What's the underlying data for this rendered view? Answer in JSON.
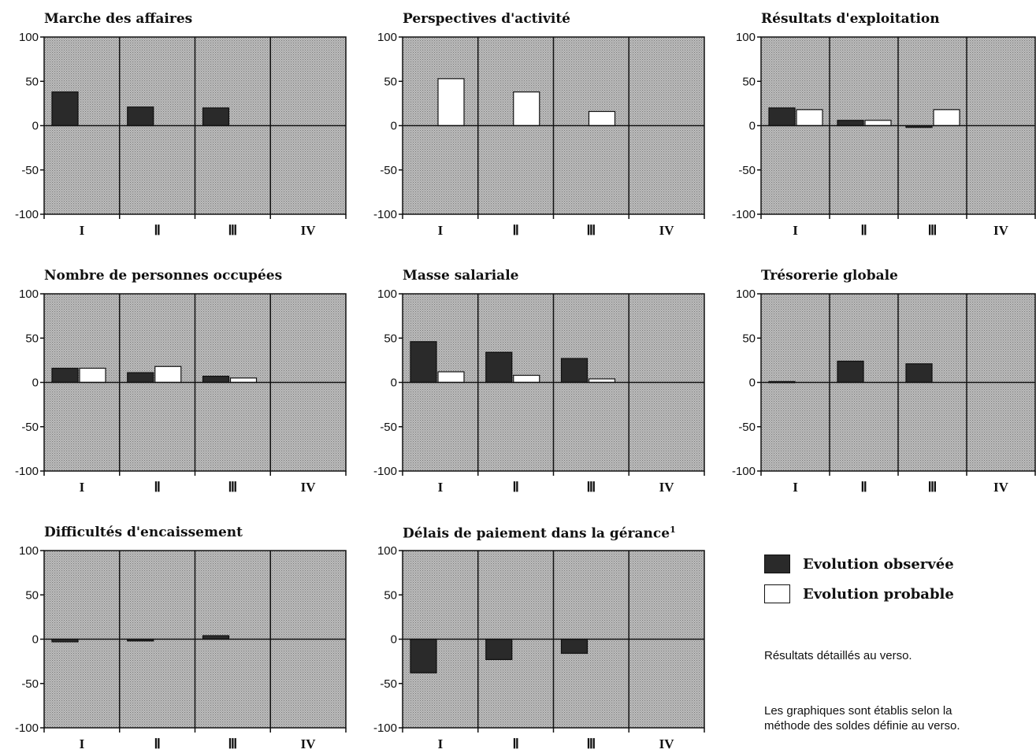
{
  "legend": [
    {
      "label": "Evolution observée",
      "color": "#2a2a2a"
    },
    {
      "label": "Evolution probable",
      "color": "#ffffff"
    }
  ],
  "notes": {
    "detail": "Résultats détaillés au verso.",
    "method_line1": "Les graphiques sont établis selon la",
    "method_line2": "méthode des soldes définie au verso."
  },
  "colors": {
    "observed": "#2a2a2a",
    "probable": "#ffffff",
    "plot_background": "#b3b3b3",
    "axis": "#111111"
  },
  "chart_data": [
    {
      "type": "bar",
      "title": "Marche des affaires",
      "footnote": "",
      "categories": [
        "I",
        "II",
        "III",
        "IV"
      ],
      "ylim": [
        -100,
        100
      ],
      "yticks": [
        100,
        50,
        0,
        -50,
        -100
      ],
      "grid": false,
      "series": [
        {
          "name": "Evolution observée",
          "values": [
            38,
            21,
            20,
            null
          ]
        },
        {
          "name": "Evolution probable",
          "values": [
            null,
            null,
            null,
            null
          ]
        }
      ]
    },
    {
      "type": "bar",
      "title": "Perspectives d'activité",
      "footnote": "",
      "categories": [
        "I",
        "II",
        "III",
        "IV"
      ],
      "ylim": [
        -100,
        100
      ],
      "yticks": [
        100,
        50,
        0,
        -50,
        -100
      ],
      "grid": false,
      "series": [
        {
          "name": "Evolution observée",
          "values": [
            null,
            null,
            null,
            null
          ]
        },
        {
          "name": "Evolution probable",
          "values": [
            53,
            38,
            16,
            null
          ]
        }
      ]
    },
    {
      "type": "bar",
      "title": "Résultats d'exploitation",
      "footnote": "",
      "categories": [
        "I",
        "II",
        "III",
        "IV"
      ],
      "ylim": [
        -100,
        100
      ],
      "yticks": [
        100,
        50,
        0,
        -50,
        -100
      ],
      "grid": false,
      "series": [
        {
          "name": "Evolution observée",
          "values": [
            20,
            6,
            -2,
            null
          ]
        },
        {
          "name": "Evolution probable",
          "values": [
            18,
            6,
            18,
            null
          ]
        }
      ]
    },
    {
      "type": "bar",
      "title": "Nombre de personnes occupées",
      "footnote": "",
      "categories": [
        "I",
        "II",
        "III",
        "IV"
      ],
      "ylim": [
        -100,
        100
      ],
      "yticks": [
        100,
        50,
        0,
        -50,
        -100
      ],
      "grid": false,
      "series": [
        {
          "name": "Evolution observée",
          "values": [
            16,
            11,
            7,
            null
          ]
        },
        {
          "name": "Evolution probable",
          "values": [
            16,
            18,
            5,
            null
          ]
        }
      ]
    },
    {
      "type": "bar",
      "title": "Masse salariale",
      "footnote": "",
      "categories": [
        "I",
        "II",
        "III",
        "IV"
      ],
      "ylim": [
        -100,
        100
      ],
      "yticks": [
        100,
        50,
        0,
        -50,
        -100
      ],
      "grid": false,
      "series": [
        {
          "name": "Evolution observée",
          "values": [
            46,
            34,
            27,
            null
          ]
        },
        {
          "name": "Evolution probable",
          "values": [
            12,
            8,
            4,
            null
          ]
        }
      ]
    },
    {
      "type": "bar",
      "title": "Trésorerie globale",
      "footnote": "",
      "categories": [
        "I",
        "II",
        "III",
        "IV"
      ],
      "ylim": [
        -100,
        100
      ],
      "yticks": [
        100,
        50,
        0,
        -50,
        -100
      ],
      "grid": false,
      "series": [
        {
          "name": "Evolution observée",
          "values": [
            1,
            24,
            21,
            null
          ]
        },
        {
          "name": "Evolution probable",
          "values": [
            null,
            null,
            null,
            null
          ]
        }
      ]
    },
    {
      "type": "bar",
      "title": "Difficultés d'encaissement",
      "footnote": "",
      "categories": [
        "I",
        "II",
        "III",
        "IV"
      ],
      "ylim": [
        -100,
        100
      ],
      "yticks": [
        100,
        50,
        0,
        -50,
        -100
      ],
      "grid": false,
      "series": [
        {
          "name": "Evolution observée",
          "values": [
            -3,
            -2,
            4,
            null
          ]
        },
        {
          "name": "Evolution probable",
          "values": [
            null,
            null,
            null,
            null
          ]
        }
      ]
    },
    {
      "type": "bar",
      "title": "Délais de paiement dans la gérance",
      "footnote": "1",
      "categories": [
        "I",
        "II",
        "III",
        "IV"
      ],
      "ylim": [
        -100,
        100
      ],
      "yticks": [
        100,
        50,
        0,
        -50,
        -100
      ],
      "grid": false,
      "series": [
        {
          "name": "Evolution observée",
          "values": [
            -38,
            -23,
            -16,
            null
          ]
        },
        {
          "name": "Evolution probable",
          "values": [
            null,
            null,
            null,
            null
          ]
        }
      ]
    }
  ]
}
